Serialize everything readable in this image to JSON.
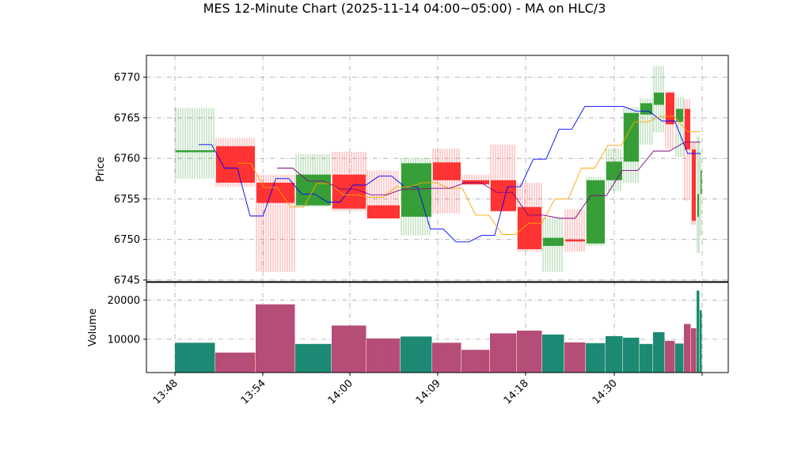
{
  "chart_data": {
    "type": "candlestick",
    "title": "MES 12-Minute Chart (2025-11-14 04:00~05:00) - MA on HLC/3",
    "ylabel_price": "Price",
    "ylabel_volume": "Volume",
    "price_ylim": [
      6744.8,
      6772.7
    ],
    "volume_ylim": [
      1500,
      24500
    ],
    "grid": true,
    "price_yticks": [
      "6745",
      "6750",
      "6755",
      "6760",
      "6765",
      "6770"
    ],
    "volume_yticks": [
      "10000",
      "20000"
    ],
    "xticks": [
      "13:48",
      "13:54",
      "14:00",
      "14:09",
      "14:18",
      "14:30",
      ""
    ],
    "colors": {
      "up": "#2e9a2e",
      "down": "#ff2a2a",
      "volume_up": "#1a8c6a",
      "volume_down": "#c24a6e",
      "ma_fast": "#0000ff",
      "ma_mid": "#ffa500",
      "ma_slow": "#800080",
      "grid": "#aaaaaa"
    },
    "candles": [
      {
        "open": 6761.0,
        "high": 6766.2,
        "low": 6757.5,
        "close": 6761.0,
        "volume": 9100
      },
      {
        "open": 6761.5,
        "high": 6762.5,
        "low": 6756.5,
        "close": 6757.0,
        "volume": 6600
      },
      {
        "open": 6757.0,
        "high": 6758.0,
        "low": 6746.0,
        "close": 6754.5,
        "volume": 18900
      },
      {
        "open": 6754.2,
        "high": 6760.5,
        "low": 6754.0,
        "close": 6758.0,
        "volume": 8800
      },
      {
        "open": 6758.0,
        "high": 6760.8,
        "low": 6753.5,
        "close": 6753.8,
        "volume": 13500
      },
      {
        "open": 6754.2,
        "high": 6758.5,
        "low": 6752.5,
        "close": 6752.6,
        "volume": 10200
      },
      {
        "open": 6752.8,
        "high": 6760.0,
        "low": 6750.5,
        "close": 6759.4,
        "volume": 10700
      },
      {
        "open": 6759.5,
        "high": 6761.2,
        "low": 6753.2,
        "close": 6757.3,
        "volume": 9100
      },
      {
        "open": 6757.3,
        "high": 6758.0,
        "low": 6756.7,
        "close": 6756.8,
        "volume": 7300
      },
      {
        "open": 6757.3,
        "high": 6761.7,
        "low": 6753.4,
        "close": 6753.5,
        "volume": 11500
      },
      {
        "open": 6754.0,
        "high": 6757.0,
        "low": 6748.5,
        "close": 6748.8,
        "volume": 12200
      },
      {
        "open": 6749.2,
        "high": 6752.7,
        "low": 6746.0,
        "close": 6750.2,
        "volume": 11200
      },
      {
        "open": 6750.0,
        "high": 6753.7,
        "low": 6748.5,
        "close": 6749.8,
        "volume": 9200
      },
      {
        "open": 6749.5,
        "high": 6757.7,
        "low": 6749.2,
        "close": 6757.3,
        "volume": 9000
      },
      {
        "open": 6757.3,
        "high": 6761.2,
        "low": 6756.0,
        "close": 6759.6,
        "volume": 10800
      },
      {
        "open": 6759.6,
        "high": 6766.3,
        "low": 6757.0,
        "close": 6765.6,
        "volume": 10400
      },
      {
        "open": 6765.4,
        "high": 6767.4,
        "low": 6761.7,
        "close": 6766.8,
        "volume": 8800
      },
      {
        "open": 6766.6,
        "high": 6771.4,
        "low": 6763.2,
        "close": 6768.1,
        "volume": 11800
      },
      {
        "open": 6768.1,
        "high": 6768.3,
        "low": 6761.2,
        "close": 6764.2,
        "volume": 9600
      },
      {
        "open": 6764.5,
        "high": 6767.6,
        "low": 6760.2,
        "close": 6766.1,
        "volume": 8900
      },
      {
        "open": 6766.1,
        "high": 6767.3,
        "low": 6754.8,
        "close": 6761.1,
        "volume": 13900
      },
      {
        "open": 6761.1,
        "high": 6762.0,
        "low": 6751.8,
        "close": 6752.3,
        "volume": 12800
      },
      {
        "open": 6752.8,
        "high": 6762.7,
        "low": 6748.3,
        "close": 6755.6,
        "volume": 22400
      },
      {
        "open": 6755.6,
        "high": 6760.7,
        "low": 6750.5,
        "close": 6758.5,
        "volume": 17400
      }
    ],
    "ma_fast": [
      6761.7,
      6761.7,
      6758.8,
      6758.8,
      6752.9,
      6752.9,
      6757.5,
      6757.5,
      6755.6,
      6755.6,
      6754.6,
      6754.6,
      6756.7,
      6756.7,
      6757.8,
      6757.8,
      6756.5,
      6756.5,
      6751.3,
      6751.3,
      6749.7,
      6749.7,
      6750.5,
      6750.5,
      6756.5,
      6756.5,
      6759.9,
      6759.9,
      6763.6,
      6763.6,
      6766.4,
      6766.4,
      6766.4,
      6766.4,
      6765.8,
      6765.8,
      6764.6,
      6764.6,
      6760.6,
      6760.6
    ],
    "ma_mid": [
      6759.4,
      6759.4,
      6756.4,
      6756.4,
      6754.0,
      6754.0,
      6756.9,
      6756.9,
      6755.5,
      6755.5,
      6755.2,
      6755.2,
      6756.5,
      6756.5,
      6757.0,
      6757.0,
      6756.3,
      6756.3,
      6753.0,
      6753.0,
      6750.6,
      6750.6,
      6752.0,
      6752.0,
      6755.0,
      6755.0,
      6758.8,
      6758.8,
      6761.6,
      6761.6,
      6764.5,
      6764.5,
      6765.2,
      6765.2,
      6763.3,
      6763.3
    ],
    "ma_slow": [
      6758.8,
      6758.8,
      6757.2,
      6757.2,
      6756.2,
      6756.2,
      6755.5,
      6755.5,
      6756.2,
      6756.2,
      6756.3,
      6756.3,
      6757.0,
      6757.0,
      6755.8,
      6755.8,
      6753.0,
      6753.0,
      6752.6,
      6752.6,
      6755.4,
      6755.4,
      6758.5,
      6758.5,
      6760.9,
      6760.9,
      6762.0,
      6762.0
    ]
  }
}
